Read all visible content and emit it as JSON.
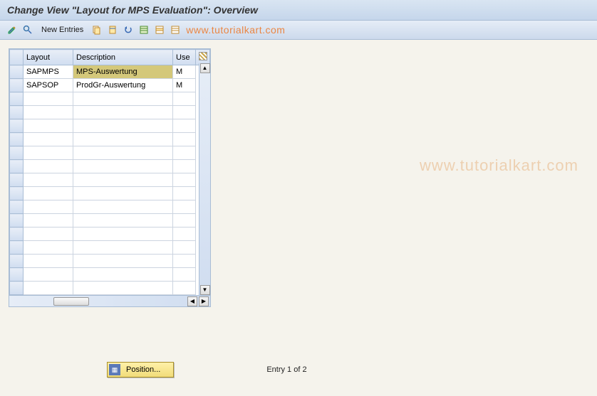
{
  "title": "Change View \"Layout for MPS Evaluation\": Overview",
  "toolbar": {
    "new_entries": "New Entries"
  },
  "watermark_toolbar": "www.tutorialkart.com",
  "watermark_body": "www.tutorialkart.com",
  "table": {
    "columns": {
      "layout": "Layout",
      "description": "Description",
      "use": "Use"
    },
    "rows": [
      {
        "layout": "SAPMPS",
        "description": "MPS-Auswertung",
        "use": "M",
        "selected": true
      },
      {
        "layout": "SAPSOP",
        "description": "ProdGr-Auswertung",
        "use": "M",
        "selected": false
      }
    ],
    "empty_rows": 15
  },
  "footer": {
    "position_label": "Position...",
    "entry_text": "Entry 1 of 2"
  },
  "colors": {
    "header_grad_top": "#d9e5f2",
    "header_grad_bottom": "#c5d6eb",
    "selected_bg": "#d4c87a",
    "watermark": "#ed7d31"
  }
}
